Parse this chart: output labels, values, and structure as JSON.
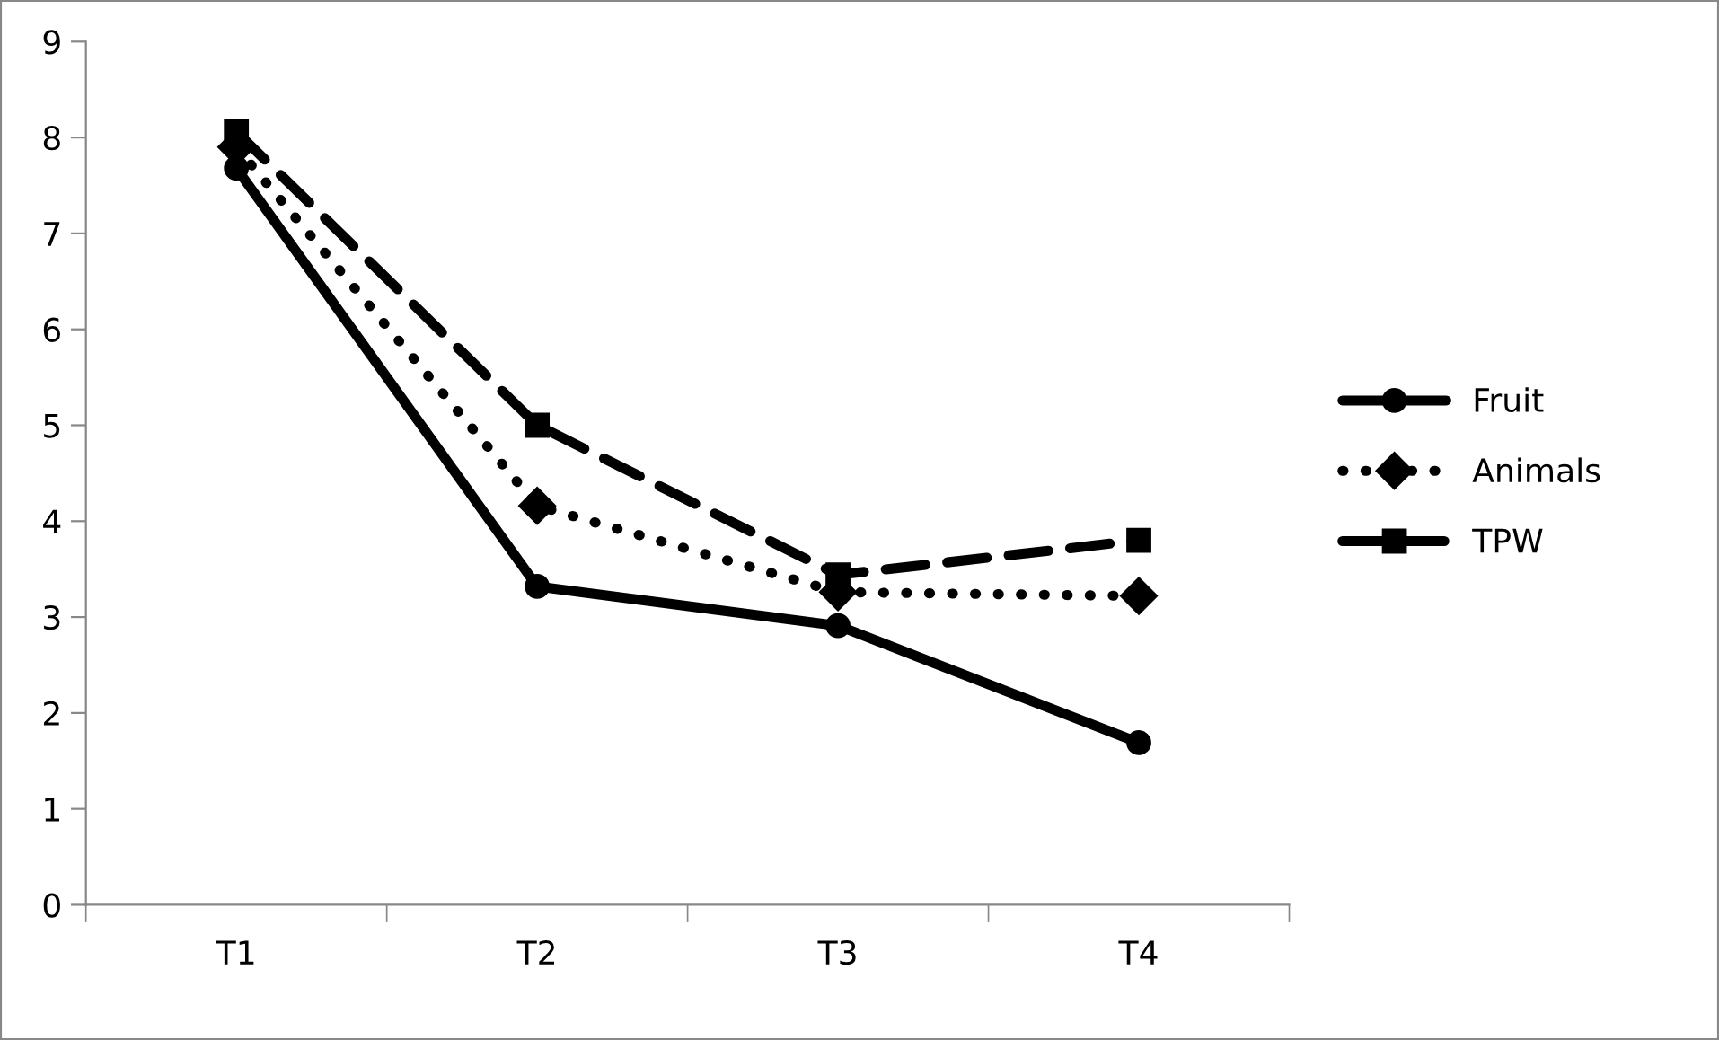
{
  "chart_data": {
    "type": "line",
    "categories": [
      "T1",
      "T2",
      "T3",
      "T4"
    ],
    "series": [
      {
        "name": "Fruit",
        "color": "#000000",
        "marker": "circle",
        "line_style": "solid",
        "values": [
          7.68,
          3.32,
          2.91,
          1.69
        ]
      },
      {
        "name": "Animals",
        "color": "#000000",
        "marker": "diamond",
        "line_style": "dotted",
        "values": [
          7.9,
          4.16,
          3.26,
          3.22
        ]
      },
      {
        "name": "TPW",
        "color": "#000000",
        "marker": "square",
        "line_style": "dashed",
        "values": [
          8.06,
          5.0,
          3.44,
          3.8
        ]
      }
    ],
    "ylim": [
      0,
      9
    ],
    "yticks": [
      0,
      1,
      2,
      3,
      4,
      5,
      6,
      7,
      8,
      9
    ],
    "legend": "right"
  }
}
